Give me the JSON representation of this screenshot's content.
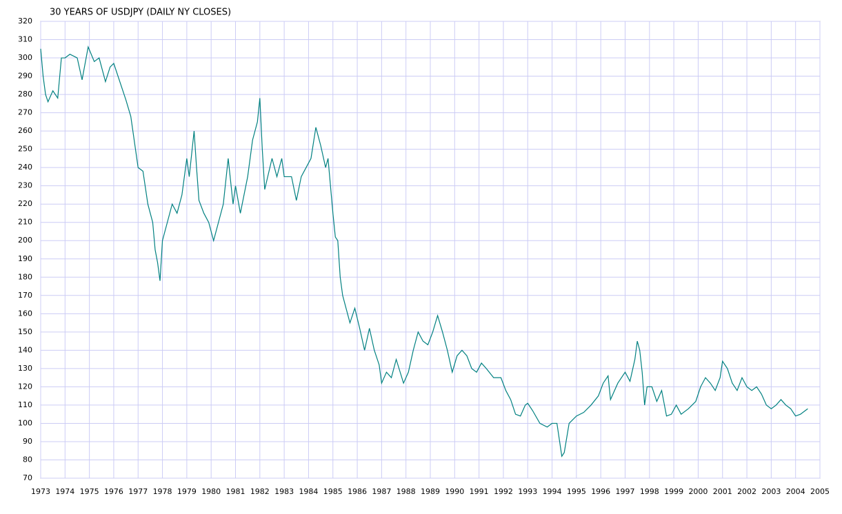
{
  "chart_data": {
    "type": "line",
    "title": "30 YEARS OF USDJPY (DAILY NY CLOSES)",
    "x": [
      1973.0,
      1973.1,
      1973.2,
      1973.3,
      1973.5,
      1973.7,
      1973.85,
      1974.0,
      1974.2,
      1974.5,
      1974.7,
      1974.95,
      1975.2,
      1975.4,
      1975.66,
      1975.85,
      1976.0,
      1976.3,
      1976.5,
      1976.7,
      1977.0,
      1977.2,
      1977.4,
      1977.6,
      1977.7,
      1977.8,
      1977.9,
      1978.0,
      1978.2,
      1978.4,
      1978.6,
      1978.8,
      1979.0,
      1979.1,
      1979.3,
      1979.4,
      1979.5,
      1979.7,
      1979.9,
      1980.0,
      1980.1,
      1980.3,
      1980.5,
      1980.7,
      1980.9,
      1981.0,
      1981.2,
      1981.5,
      1981.7,
      1981.9,
      1982.0,
      1982.1,
      1982.2,
      1982.5,
      1982.7,
      1982.9,
      1983.0,
      1983.3,
      1983.5,
      1983.7,
      1983.9,
      1984.1,
      1984.3,
      1984.5,
      1984.7,
      1984.8,
      1985.0,
      1985.1,
      1985.2,
      1985.3,
      1985.4,
      1985.5,
      1985.7,
      1985.9,
      1986.1,
      1986.3,
      1986.5,
      1986.7,
      1986.9,
      1987.0,
      1987.2,
      1987.4,
      1987.6,
      1987.9,
      1988.1,
      1988.3,
      1988.5,
      1988.7,
      1988.9,
      1989.1,
      1989.3,
      1989.5,
      1989.7,
      1989.9,
      1990.1,
      1990.3,
      1990.5,
      1990.7,
      1990.9,
      1991.1,
      1991.3,
      1991.6,
      1991.9,
      1992.1,
      1992.3,
      1992.5,
      1992.7,
      1992.9,
      1993.0,
      1993.2,
      1993.5,
      1993.8,
      1994.0,
      1994.2,
      1994.4,
      1994.5,
      1994.7,
      1995.0,
      1995.3,
      1995.6,
      1995.9,
      1996.1,
      1996.3,
      1996.4,
      1996.7,
      1997.0,
      1997.2,
      1997.4,
      1997.5,
      1997.6,
      1997.7,
      1997.8,
      1997.9,
      1998.1,
      1998.3,
      1998.5,
      1998.7,
      1998.9,
      1999.1,
      1999.3,
      1999.6,
      1999.9,
      2000.1,
      2000.3,
      2000.5,
      2000.7,
      2000.9,
      2001.0,
      2001.2,
      2001.4,
      2001.6,
      2001.8,
      2002.0,
      2002.2,
      2002.4,
      2002.6,
      2002.8,
      2003.0,
      2003.2,
      2003.4,
      2003.6,
      2003.8,
      2004.0,
      2004.2,
      2004.4,
      2004.5
    ],
    "values": [
      305,
      290,
      280,
      276,
      282,
      278,
      300,
      300,
      302,
      300,
      288,
      306,
      298,
      300,
      287,
      295,
      297,
      285,
      277,
      268,
      240,
      238,
      220,
      210,
      195,
      188,
      178,
      200,
      210,
      220,
      215,
      225,
      245,
      235,
      260,
      240,
      222,
      215,
      210,
      205,
      200,
      210,
      220,
      245,
      220,
      230,
      215,
      235,
      255,
      265,
      278,
      250,
      228,
      245,
      235,
      245,
      235,
      235,
      222,
      235,
      240,
      245,
      262,
      252,
      240,
      245,
      215,
      202,
      200,
      180,
      170,
      165,
      155,
      163,
      152,
      140,
      152,
      140,
      132,
      122,
      128,
      125,
      135,
      122,
      128,
      140,
      150,
      145,
      143,
      150,
      159,
      150,
      140,
      128,
      137,
      140,
      137,
      130,
      128,
      133,
      130,
      125,
      125,
      118,
      113,
      105,
      104,
      110,
      111,
      107,
      100,
      98,
      100,
      100,
      82,
      84,
      100,
      104,
      106,
      110,
      115,
      122,
      126,
      113,
      122,
      128,
      123,
      135,
      145,
      140,
      128,
      110,
      120,
      120,
      112,
      118,
      104,
      105,
      110,
      105,
      108,
      112,
      120,
      125,
      122,
      118,
      125,
      134,
      130,
      122,
      118,
      125,
      120,
      118,
      120,
      116,
      110,
      108,
      110,
      113,
      110,
      108,
      104,
      105,
      107,
      108
    ],
    "color": "#008080",
    "xlim": [
      1973,
      2005
    ],
    "xticks": [
      1973,
      1974,
      1975,
      1976,
      1977,
      1978,
      1979,
      1980,
      1981,
      1982,
      1983,
      1984,
      1985,
      1986,
      1987,
      1988,
      1989,
      1990,
      1991,
      1992,
      1993,
      1994,
      1995,
      1996,
      1997,
      1998,
      1999,
      2000,
      2001,
      2002,
      2003,
      2004,
      2005
    ],
    "ylim": [
      70,
      320
    ],
    "yticks": [
      70,
      80,
      90,
      100,
      110,
      120,
      130,
      140,
      150,
      160,
      170,
      180,
      190,
      200,
      210,
      220,
      230,
      240,
      250,
      260,
      270,
      280,
      290,
      300,
      310,
      320
    ],
    "grid": true
  }
}
